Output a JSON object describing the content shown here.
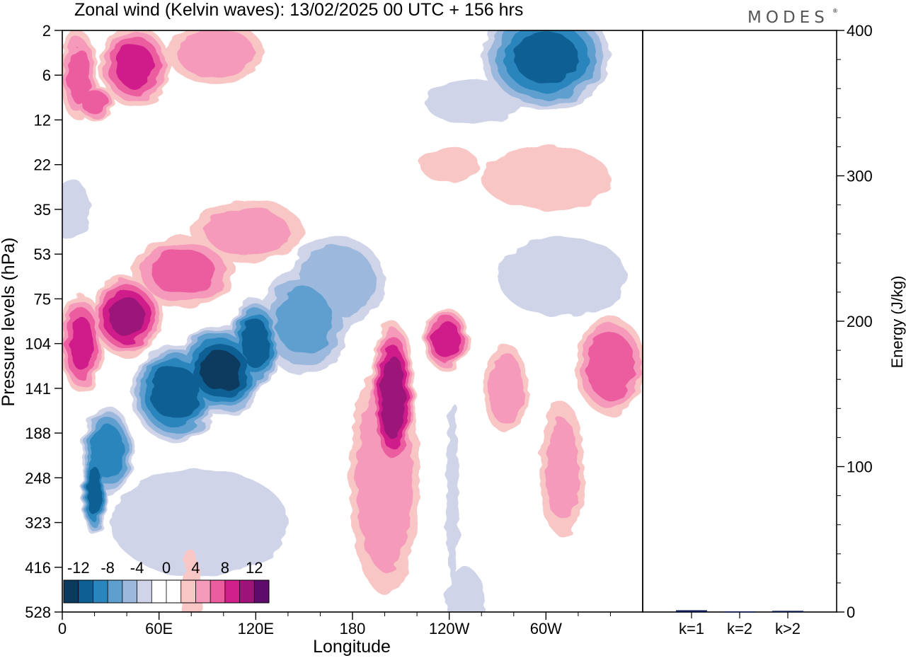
{
  "chart_data": {
    "type": "heatmap",
    "title": "Zonal wind (Kelvin waves):  13/02/2025  00 UTC  + 156 hrs",
    "logo": "MODES",
    "xlabel": "Longitude",
    "ylabel": "Pressure levels (hPa)",
    "x_ticks": [
      "0",
      "60E",
      "120E",
      "180",
      "120W",
      "60W"
    ],
    "x_tick_values": [
      0,
      60,
      120,
      180,
      240,
      300
    ],
    "xlim": [
      0,
      360
    ],
    "y_ticks": [
      "2",
      "6",
      "12",
      "22",
      "35",
      "53",
      "75",
      "104",
      "141",
      "188",
      "248",
      "323",
      "416",
      "528"
    ],
    "colorbar": {
      "labels": [
        "-12",
        "-8",
        "-4",
        "0",
        "4",
        "8",
        "12"
      ],
      "colors": [
        "#0b3a5e",
        "#0e5f94",
        "#2b85bd",
        "#5f9fcf",
        "#9cb8dc",
        "#d0d4e8",
        "#ffffff",
        "#ffffff",
        "#f8c6c4",
        "#f59aba",
        "#eb5d9f",
        "#cf1f8a",
        "#9c137a",
        "#5d0c6b"
      ]
    },
    "wind_blobs": [
      {
        "lon": 20,
        "lev": 10.3,
        "u": -11,
        "rx": 8,
        "ry": 1.0
      },
      {
        "lon": 28,
        "lev": 9.4,
        "u": -9,
        "rx": 16,
        "ry": 1.0
      },
      {
        "lon": 70,
        "lev": 8.1,
        "u": -11,
        "rx": 27,
        "ry": 1.1
      },
      {
        "lon": 98,
        "lev": 7.6,
        "u": -12,
        "rx": 28,
        "ry": 1.0
      },
      {
        "lon": 120,
        "lev": 7.0,
        "u": -11,
        "rx": 16,
        "ry": 1.0
      },
      {
        "lon": 150,
        "lev": 6.5,
        "u": -6,
        "rx": 28,
        "ry": 1.2
      },
      {
        "lon": 170,
        "lev": 5.6,
        "u": -5,
        "rx": 30,
        "ry": 1.0
      },
      {
        "lon": 85,
        "lev": 11.0,
        "u": -3,
        "rx": 55,
        "ry": 1.2
      },
      {
        "lon": 300,
        "lev": 0.6,
        "u": -10,
        "rx": 40,
        "ry": 1.2
      },
      {
        "lon": 255,
        "lev": 1.6,
        "u": -2,
        "rx": 30,
        "ry": 0.5
      },
      {
        "lon": 5,
        "lev": 4.0,
        "u": -3,
        "rx": 12,
        "ry": 0.7
      },
      {
        "lon": 310,
        "lev": 5.5,
        "u": -3,
        "rx": 40,
        "ry": 0.9
      },
      {
        "lon": 250,
        "lev": 12.8,
        "u": -3,
        "rx": 12,
        "ry": 0.8
      },
      {
        "lon": 242,
        "lev": 10.3,
        "u": -3,
        "rx": 4,
        "ry": 2.0
      },
      {
        "lon": 10,
        "lev": 1.0,
        "u": 6,
        "rx": 12,
        "ry": 1.0
      },
      {
        "lon": 45,
        "lev": 0.8,
        "u": 8,
        "rx": 22,
        "ry": 0.9
      },
      {
        "lon": 95,
        "lev": 0.5,
        "u": 5,
        "rx": 30,
        "ry": 0.7
      },
      {
        "lon": 20,
        "lev": 1.6,
        "u": 7,
        "rx": 12,
        "ry": 0.4
      },
      {
        "lon": 12,
        "lev": 7.0,
        "u": 8,
        "rx": 14,
        "ry": 1.1
      },
      {
        "lon": 40,
        "lev": 6.4,
        "u": 10,
        "rx": 22,
        "ry": 0.9
      },
      {
        "lon": 75,
        "lev": 5.4,
        "u": 6,
        "rx": 32,
        "ry": 0.8
      },
      {
        "lon": 115,
        "lev": 4.5,
        "u": 4,
        "rx": 35,
        "ry": 0.7
      },
      {
        "lon": 205,
        "lev": 8.2,
        "u": 11,
        "rx": 14,
        "ry": 1.7
      },
      {
        "lon": 238,
        "lev": 6.9,
        "u": 9,
        "rx": 14,
        "ry": 0.7
      },
      {
        "lon": 200,
        "lev": 10.0,
        "u": 5,
        "rx": 22,
        "ry": 2.6
      },
      {
        "lon": 275,
        "lev": 8.0,
        "u": 5,
        "rx": 14,
        "ry": 1.0
      },
      {
        "lon": 340,
        "lev": 7.5,
        "u": 7,
        "rx": 22,
        "ry": 1.1
      },
      {
        "lon": 310,
        "lev": 9.8,
        "u": 4,
        "rx": 14,
        "ry": 1.5
      },
      {
        "lon": 300,
        "lev": 3.3,
        "u": 3,
        "rx": 40,
        "ry": 0.7
      },
      {
        "lon": 240,
        "lev": 3.0,
        "u": 3,
        "rx": 18,
        "ry": 0.4
      },
      {
        "lon": 80,
        "lev": 12.6,
        "u": 3,
        "rx": 6,
        "ry": 1.0
      }
    ]
  },
  "energy_panel": {
    "ylabel": "Energy (J/kg)",
    "y_ticks": [
      "0",
      "100",
      "200",
      "300",
      "400"
    ],
    "y_tick_values": [
      0,
      100,
      200,
      300,
      400
    ],
    "ylim": [
      0,
      400
    ],
    "categories": [
      "k=1",
      "k=2",
      "k>2"
    ],
    "values": [
      1.2,
      0.4,
      0.8
    ],
    "bar_color": "#0b1a55"
  }
}
